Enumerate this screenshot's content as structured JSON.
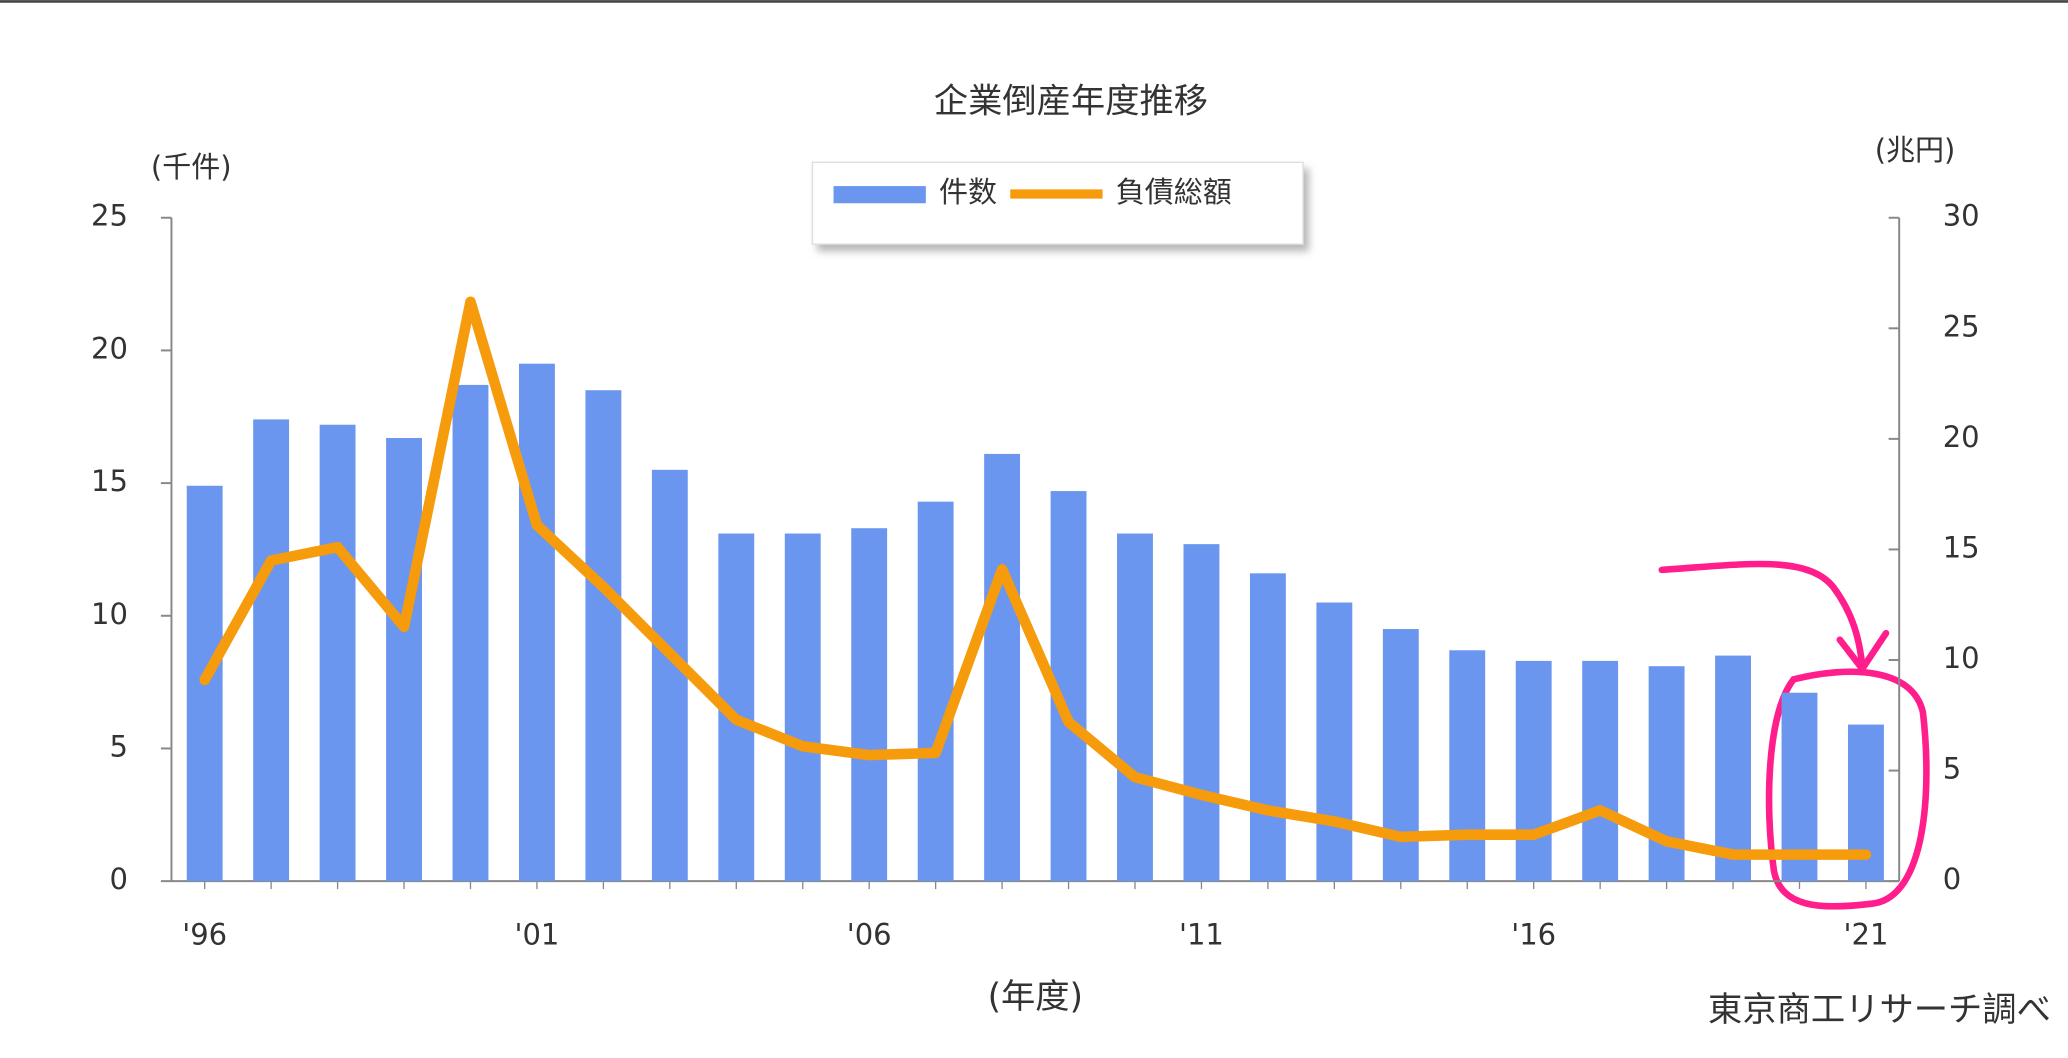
{
  "chart_data": {
    "type": "bar-line",
    "title": "企業倒産年度推移",
    "y_label": "(千件)",
    "y2_label": "(兆円)",
    "x_label": "(年度)",
    "source": "東京商工リサーチ調べ",
    "categories": [
      "'96",
      null,
      null,
      null,
      null,
      "'01",
      null,
      null,
      null,
      null,
      "'06",
      null,
      null,
      null,
      null,
      "'11",
      null,
      null,
      null,
      null,
      "'16",
      null,
      null,
      null,
      null,
      "'21"
    ],
    "series": [
      {
        "name": "件数",
        "type": "bar",
        "color": "#6b96ef",
        "values": [
          14.9,
          17.4,
          17.2,
          16.7,
          18.7,
          19.5,
          18.5,
          15.5,
          13.1,
          13.1,
          13.3,
          14.3,
          16.1,
          14.7,
          13.1,
          12.7,
          11.6,
          10.5,
          9.5,
          8.7,
          8.3,
          8.3,
          8.1,
          8.5,
          7.1,
          5.9
        ]
      },
      {
        "name": "負債総額",
        "type": "line",
        "axis": "y2",
        "color": "#f59b0c",
        "values": [
          9.1,
          14.5,
          15.1,
          11.5,
          26.2,
          16.1,
          13.3,
          10.3,
          7.3,
          6.1,
          5.7,
          5.8,
          14.1,
          7.2,
          4.7,
          3.9,
          3.2,
          2.7,
          2.0,
          2.1,
          2.1,
          3.2,
          1.8,
          1.2,
          1.2,
          1.2
        ]
      }
    ],
    "ylim": [
      0,
      25
    ],
    "yticks": [
      0,
      5,
      10,
      15,
      20,
      25
    ],
    "y2lim": [
      0,
      30
    ],
    "y2ticks": [
      0,
      5,
      10,
      15,
      20,
      25,
      30
    ],
    "legend": "top"
  }
}
